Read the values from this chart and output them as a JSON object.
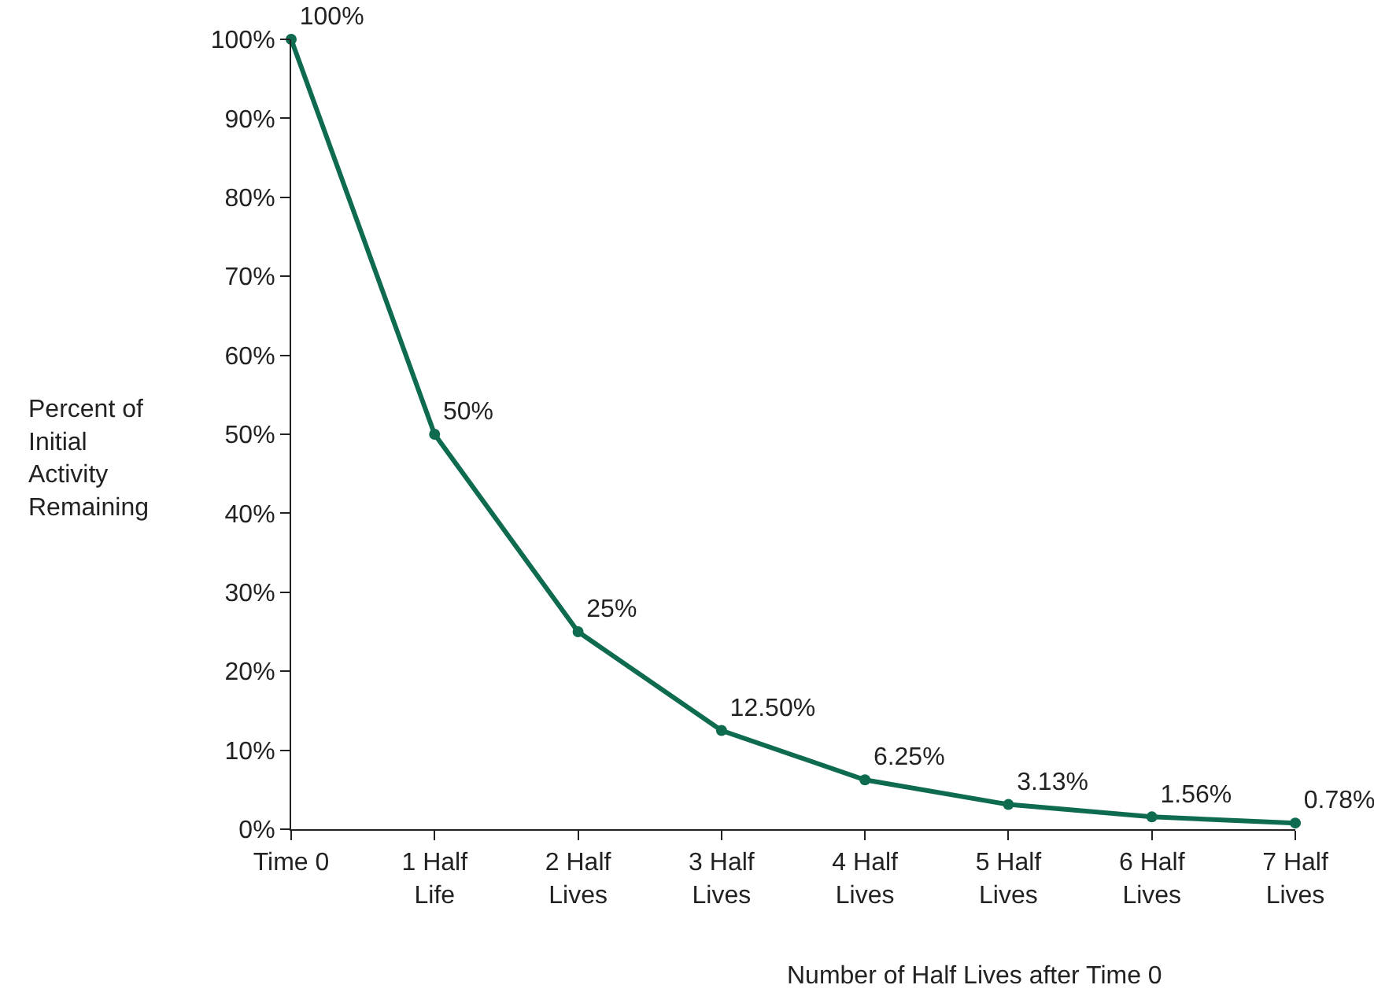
{
  "chart_data": {
    "type": "line",
    "xlabel": "Number of Half Lives after Time 0",
    "ylabel": "Percent of\nInitial\nActivity\nRemaining",
    "categories": [
      "Time 0",
      "1 Half\nLife",
      "2 Half\nLives",
      "3 Half\nLives",
      "4 Half\nLives",
      "5 Half\nLives",
      "6 Half\nLives",
      "7 Half\nLives"
    ],
    "series": [
      {
        "color": "#0e6b4f",
        "values": [
          100,
          50,
          25,
          12.5,
          6.25,
          3.13,
          1.56,
          0.78
        ],
        "value_labels": [
          "100%",
          "50%",
          "25%",
          "12.50%",
          "6.25%",
          "3.13%",
          "1.56%",
          "0.78%"
        ]
      }
    ],
    "ylim": [
      0,
      100
    ],
    "yticks": [
      {
        "value": 0,
        "label": "0%"
      },
      {
        "value": 10,
        "label": "10%"
      },
      {
        "value": 20,
        "label": "20%"
      },
      {
        "value": 30,
        "label": "30%"
      },
      {
        "value": 40,
        "label": "40%"
      },
      {
        "value": 50,
        "label": "50%"
      },
      {
        "value": 60,
        "label": "60%"
      },
      {
        "value": 70,
        "label": "70%"
      },
      {
        "value": 80,
        "label": "80%"
      },
      {
        "value": 90,
        "label": "90%"
      },
      {
        "value": 100,
        "label": "100%"
      }
    ],
    "marker": "circle",
    "line_style": "solid"
  }
}
